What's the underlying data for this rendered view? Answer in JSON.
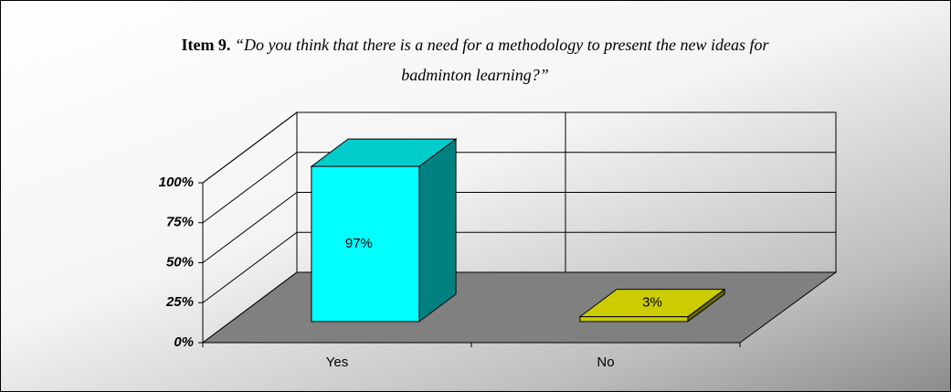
{
  "chart_data": {
    "type": "bar3d",
    "title": {
      "label": "Item 9.",
      "text": "“Do you think that there is a need for a methodology to present the new ideas for badminton learning?”"
    },
    "categories": [
      "Yes",
      "No"
    ],
    "values": [
      97,
      3
    ],
    "value_labels": [
      "97%",
      "3%"
    ],
    "colors": [
      "#00FFFF",
      "#CCCC00"
    ],
    "ylim": [
      0,
      100
    ],
    "yticks": [
      {
        "value": 0,
        "label": "0%"
      },
      {
        "value": 25,
        "label": "25%"
      },
      {
        "value": 50,
        "label": "50%"
      },
      {
        "value": 75,
        "label": "75%"
      },
      {
        "value": 100,
        "label": "100%"
      }
    ],
    "grid": true
  }
}
